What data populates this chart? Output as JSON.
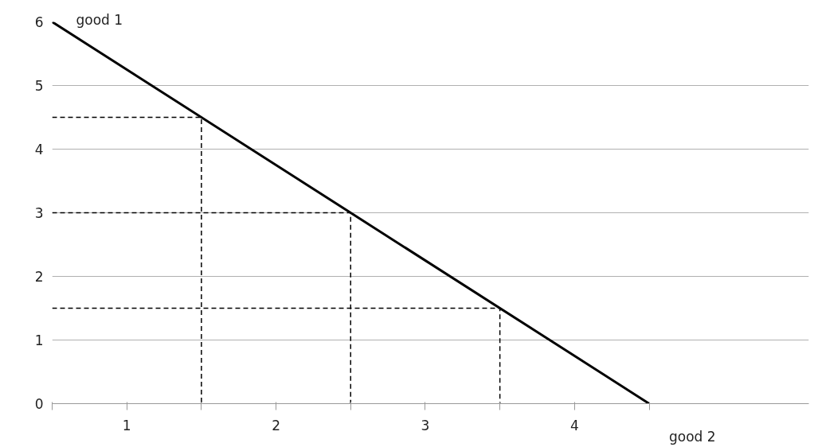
{
  "chart_data": {
    "type": "line",
    "xlabel": "good 2",
    "ylabel": "good 1",
    "xlim": [
      0,
      5.07
    ],
    "ylim": [
      0,
      6
    ],
    "xticks": [
      {
        "value": 0,
        "label": null
      },
      {
        "value": 0.5,
        "label": "1"
      },
      {
        "value": 1,
        "label": null
      },
      {
        "value": 1.5,
        "label": "2"
      },
      {
        "value": 2,
        "label": null
      },
      {
        "value": 2.5,
        "label": "3"
      },
      {
        "value": 3,
        "label": null
      },
      {
        "value": 3.5,
        "label": "4"
      },
      {
        "value": 4,
        "label": null
      }
    ],
    "yticks": [
      0,
      1,
      2,
      3,
      4,
      5,
      6
    ],
    "grid": "y",
    "marker": "none",
    "series": [
      {
        "x": [
          0,
          4
        ],
        "values": [
          6,
          0
        ],
        "color": "#000000",
        "line_style": "solid"
      },
      {
        "x": [
          0,
          1,
          1
        ],
        "values": [
          4.5,
          4.5,
          0
        ],
        "color": "#000000",
        "line_style": "dashed"
      },
      {
        "x": [
          0,
          2,
          2
        ],
        "values": [
          3,
          3,
          0
        ],
        "color": "#000000",
        "line_style": "dashed"
      },
      {
        "x": [
          0,
          3,
          3
        ],
        "values": [
          1.5,
          1.5,
          0
        ],
        "color": "#000000",
        "line_style": "dashed"
      }
    ]
  }
}
